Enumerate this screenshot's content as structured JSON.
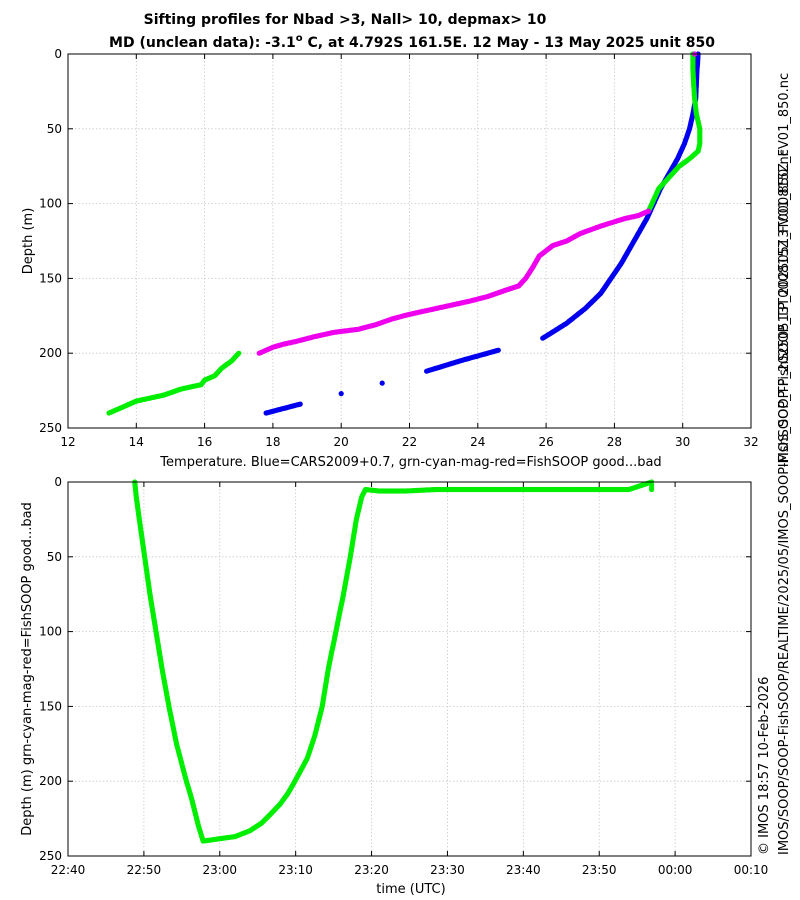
{
  "page": {
    "title_line1": "Sifting profiles for Nbad >3, Nall> 10, depmax> 10",
    "title_line2_pre": "MD (unclean data): -3.1",
    "title_line2_deg": "o",
    "title_line2_post": " C, at 4.792S 161.5E. 12 May - 13 May 2025 unit 850",
    "side_right_top": "IMOS_SOOP-FishSOOP_TP_20250513T000815Z_FV01_850.nc",
    "side_right_bottom_1": "© IMOS 18:57 10-Feb-2026",
    "side_right_bottom_2": "IMOS/SOOP/SOOP-FishSOOP/REALTIME/2025/05/IMOS_SOOP-FishSOOP_TP_20250513T000815Z_FV01_850.nc"
  },
  "colors": {
    "cars": "#0000ee",
    "good": "#00ee00",
    "mag": "#ee00ee",
    "grid": "#c8c8c8"
  },
  "chart_data": [
    {
      "type": "scatter",
      "xlabel": "Temperature. Blue=CARS2009+0.7, grn-cyan-mag-red=FishSOOP good...bad",
      "ylabel": "Depth (m)",
      "xlim": [
        12,
        32
      ],
      "ylim": [
        0,
        250
      ],
      "y_reversed": true,
      "grid": true,
      "xticks": [
        12,
        14,
        16,
        18,
        20,
        22,
        24,
        26,
        28,
        30,
        32
      ],
      "yticks": [
        0,
        50,
        100,
        150,
        200,
        250
      ],
      "series": [
        {
          "name": "CARS2009+0.7",
          "color": "#0000ee",
          "points": [
            [
              30.45,
              0
            ],
            [
              30.44,
              5
            ],
            [
              30.42,
              10
            ],
            [
              30.4,
              20
            ],
            [
              30.38,
              30
            ],
            [
              30.3,
              40
            ],
            [
              30.2,
              50
            ],
            [
              30.05,
              60
            ],
            [
              29.85,
              70
            ],
            [
              29.6,
              80
            ],
            [
              29.35,
              90
            ],
            [
              29.15,
              100
            ],
            [
              28.95,
              110
            ],
            [
              28.7,
              120
            ],
            [
              28.45,
              130
            ],
            [
              28.2,
              140
            ],
            [
              27.9,
              150
            ],
            [
              27.6,
              160
            ],
            [
              27.15,
              170
            ],
            [
              26.6,
              180
            ],
            [
              25.9,
              190
            ],
            [
              24.6,
              198
            ],
            [
              23.5,
              205
            ],
            [
              22.5,
              212
            ],
            [
              21.2,
              220
            ],
            [
              20.0,
              227
            ],
            [
              18.8,
              234
            ],
            [
              17.8,
              240
            ]
          ]
        },
        {
          "name": "FishSOOP good (green)",
          "color": "#00ee00",
          "points": [
            [
              30.3,
              0
            ],
            [
              30.3,
              10
            ],
            [
              30.32,
              20
            ],
            [
              30.35,
              30
            ],
            [
              30.4,
              40
            ],
            [
              30.5,
              50
            ],
            [
              30.5,
              60
            ],
            [
              30.45,
              65
            ],
            [
              30.2,
              70
            ],
            [
              29.9,
              75
            ],
            [
              29.7,
              80
            ],
            [
              29.5,
              85
            ],
            [
              29.3,
              90
            ],
            [
              29.2,
              95
            ],
            [
              29.1,
              100
            ],
            [
              29.0,
              105
            ],
            [
              17.0,
              200
            ],
            [
              16.8,
              205
            ],
            [
              16.5,
              210
            ],
            [
              16.3,
              215
            ],
            [
              16.0,
              218
            ],
            [
              15.9,
              221
            ],
            [
              15.3,
              224
            ],
            [
              14.8,
              228
            ],
            [
              14.0,
              232
            ],
            [
              13.7,
              235
            ],
            [
              13.5,
              237
            ],
            [
              13.2,
              240
            ]
          ]
        },
        {
          "name": "FishSOOP mag",
          "color": "#ee00ee",
          "points": [
            [
              30.35,
              0
            ],
            [
              29.0,
              105
            ],
            [
              28.7,
              108
            ],
            [
              28.3,
              110
            ],
            [
              27.6,
              115
            ],
            [
              27.0,
              120
            ],
            [
              26.6,
              125
            ],
            [
              26.2,
              128
            ],
            [
              25.8,
              135
            ],
            [
              25.6,
              143
            ],
            [
              25.4,
              150
            ],
            [
              25.2,
              155
            ],
            [
              24.8,
              158
            ],
            [
              24.3,
              162
            ],
            [
              23.8,
              165
            ],
            [
              23.2,
              168
            ],
            [
              22.6,
              171
            ],
            [
              22.0,
              174
            ],
            [
              21.5,
              177
            ],
            [
              21.0,
              181
            ],
            [
              20.5,
              184
            ],
            [
              19.8,
              186
            ],
            [
              19.2,
              189
            ],
            [
              18.7,
              192
            ],
            [
              18.3,
              194
            ],
            [
              18.0,
              196
            ],
            [
              17.8,
              198
            ],
            [
              17.6,
              200
            ]
          ]
        }
      ]
    },
    {
      "type": "scatter",
      "xlabel": "time (UTC)",
      "ylabel": "Depth (m) grn-cyan-mag-red=FishSOOP good...bad",
      "x_unit": "minutes after 22:40",
      "xlim": [
        0,
        90
      ],
      "ylim": [
        0,
        250
      ],
      "y_reversed": true,
      "grid": true,
      "xticks": [
        0,
        10,
        20,
        30,
        40,
        50,
        60,
        70,
        80,
        90
      ],
      "xtick_labels": [
        "22:40",
        "22:50",
        "23:00",
        "23:10",
        "23:20",
        "23:30",
        "23:40",
        "23:50",
        "00:00",
        "00:10"
      ],
      "yticks": [
        0,
        50,
        100,
        150,
        200,
        250
      ],
      "series": [
        {
          "name": "FishSOOP good",
          "color": "#00ee00",
          "points": [
            [
              8.8,
              0
            ],
            [
              9.0,
              10
            ],
            [
              9.4,
              25
            ],
            [
              10.1,
              50
            ],
            [
              10.8,
              75
            ],
            [
              11.6,
              100
            ],
            [
              12.4,
              125
            ],
            [
              13.3,
              150
            ],
            [
              14.3,
              175
            ],
            [
              15.6,
              200
            ],
            [
              16.2,
              210
            ],
            [
              16.7,
              220
            ],
            [
              17.2,
              230
            ],
            [
              17.8,
              240
            ],
            [
              22.0,
              237
            ],
            [
              24.0,
              233
            ],
            [
              25.5,
              228
            ],
            [
              26.7,
              222
            ],
            [
              28.0,
              215
            ],
            [
              29.0,
              208
            ],
            [
              29.9,
              200
            ],
            [
              31.5,
              185
            ],
            [
              32.5,
              170
            ],
            [
              33.5,
              150
            ],
            [
              34.3,
              125
            ],
            [
              35.3,
              100
            ],
            [
              36.3,
              75
            ],
            [
              37.2,
              50
            ],
            [
              38.0,
              25
            ],
            [
              38.7,
              10
            ],
            [
              39.2,
              5
            ],
            [
              41.0,
              6
            ],
            [
              44.5,
              6
            ],
            [
              48.5,
              5
            ],
            [
              49.5,
              5
            ],
            [
              50.3,
              5
            ],
            [
              55.3,
              5
            ],
            [
              56.7,
              5
            ],
            [
              57.4,
              5
            ],
            [
              61.2,
              5
            ],
            [
              63.3,
              5
            ],
            [
              64.2,
              5
            ],
            [
              64.8,
              5
            ],
            [
              66.5,
              5
            ],
            [
              67.1,
              5
            ],
            [
              68.8,
              5
            ],
            [
              70.0,
              5
            ],
            [
              71.2,
              5
            ],
            [
              72.2,
              5
            ],
            [
              73.2,
              5
            ],
            [
              73.9,
              5
            ],
            [
              76.9,
              0
            ],
            [
              76.9,
              2
            ],
            [
              76.9,
              4
            ],
            [
              76.9,
              5
            ]
          ]
        }
      ]
    }
  ]
}
